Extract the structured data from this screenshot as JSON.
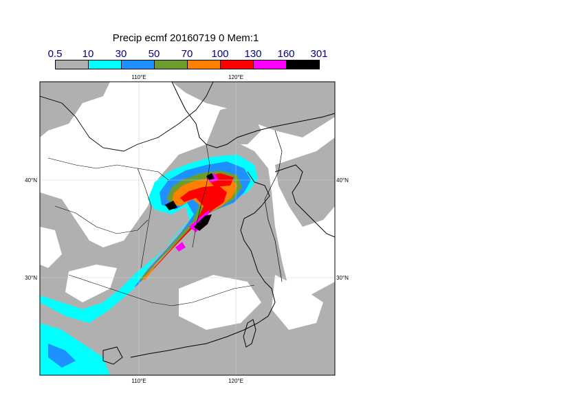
{
  "title": "Precip ecmf 20160719 0 Mem:1",
  "legend": {
    "labels": [
      "0.5",
      "10",
      "30",
      "50",
      "70",
      "100",
      "130",
      "160",
      "301"
    ],
    "colors": [
      "#b0b0b0",
      "#00ffff",
      "#1e90ff",
      "#6b9e2e",
      "#ff8000",
      "#ff0000",
      "#ff00ff",
      "#000000"
    ]
  },
  "map": {
    "lon_labels_top": [
      "110°E",
      "120°E"
    ],
    "lon_labels_bottom": [
      "110°E",
      "120°E"
    ],
    "lat_labels_left": [
      "40°N",
      "30°N"
    ],
    "lat_labels_right": [
      "40°N",
      "30°N"
    ]
  }
}
